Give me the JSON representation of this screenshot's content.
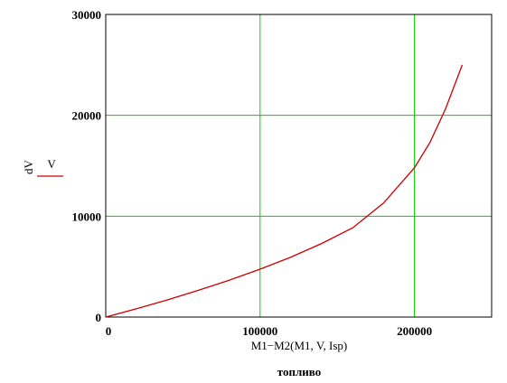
{
  "chart_data": {
    "type": "line",
    "xlabel": "M1−M2(M1, V, Isp)",
    "caption": "топливо",
    "ylabel_lines": [
      "dV",
      "V"
    ],
    "xlim": [
      0,
      250000
    ],
    "ylim": [
      0,
      30000
    ],
    "x_ticks": [
      0,
      100000,
      200000
    ],
    "x_tick_labels": [
      "0",
      "100000",
      "200000"
    ],
    "y_ticks": [
      0,
      10000,
      20000,
      30000
    ],
    "y_tick_labels": [
      "0",
      "10000",
      "20000",
      "30000"
    ],
    "grid": true,
    "series": [
      {
        "color": "#cc0000",
        "x": [
          0,
          20000,
          40000,
          60000,
          80000,
          100000,
          120000,
          140000,
          160000,
          180000,
          200000,
          210000,
          220000,
          225000,
          231000
        ],
        "y": [
          0,
          820,
          1700,
          2650,
          3650,
          4750,
          5950,
          7300,
          8850,
          11300,
          14800,
          17300,
          20600,
          22600,
          25000
        ]
      }
    ],
    "grid_color": "#00cc00",
    "axis_color": "#000000"
  }
}
